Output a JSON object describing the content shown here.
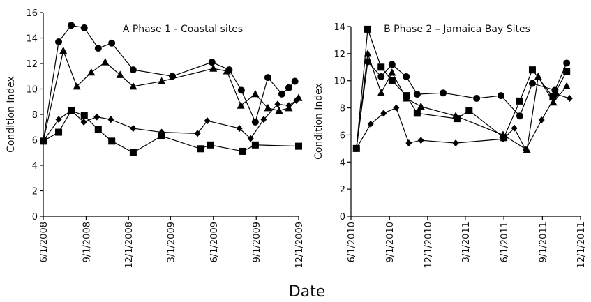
{
  "x_label": "Date",
  "chart_data": [
    {
      "type": "line",
      "title": "A  Phase 1 - Coastal sites",
      "y_label": "Condition Index",
      "xlim": [
        "2008-06-01",
        "2009-12-01"
      ],
      "ylim": [
        0,
        16
      ],
      "yticks": [
        0,
        2,
        4,
        6,
        8,
        10,
        12,
        14,
        16
      ],
      "xticks": [
        {
          "value": "2008-06-01",
          "label": "6/1/2008"
        },
        {
          "value": "2008-09-01",
          "label": "9/1/2008"
        },
        {
          "value": "2008-12-01",
          "label": "12/1/2008"
        },
        {
          "value": "2009-03-01",
          "label": "3/1/2009"
        },
        {
          "value": "2009-06-01",
          "label": "6/1/2009"
        },
        {
          "value": "2009-09-01",
          "label": "9/1/2009"
        },
        {
          "value": "2009-12-01",
          "label": "12/1/2009"
        }
      ],
      "series": [
        {
          "marker": "circle",
          "color": "#000000",
          "x": [
            "2008-06-01",
            "2008-07-04",
            "2008-07-31",
            "2008-08-28",
            "2008-09-27",
            "2008-10-26",
            "2008-12-11",
            "2009-03-05",
            "2009-05-29",
            "2009-07-05",
            "2009-07-31",
            "2009-08-30",
            "2009-09-26",
            "2009-10-26",
            "2009-11-10",
            "2009-11-23"
          ],
          "values": [
            5.9,
            13.7,
            15.0,
            14.8,
            13.2,
            13.6,
            11.5,
            11.0,
            12.1,
            11.5,
            9.9,
            7.4,
            10.9,
            9.6,
            10.1,
            10.6
          ]
        },
        {
          "marker": "triangle",
          "color": "#000000",
          "x": [
            "2008-06-01",
            "2008-07-14",
            "2008-08-12",
            "2008-09-12",
            "2008-10-12",
            "2008-11-13",
            "2008-12-11",
            "2009-02-10",
            "2009-06-01",
            "2009-06-30",
            "2009-07-30",
            "2009-08-30",
            "2009-09-26",
            "2009-10-20",
            "2009-11-10",
            "2009-12-01"
          ],
          "values": [
            5.9,
            13.0,
            10.2,
            11.3,
            12.1,
            11.1,
            10.2,
            10.6,
            11.6,
            11.4,
            8.7,
            9.6,
            8.5,
            8.3,
            8.5,
            9.3
          ]
        },
        {
          "marker": "diamond",
          "color": "#000000",
          "x": [
            "2008-06-01",
            "2008-07-04",
            "2008-07-31",
            "2008-08-27",
            "2008-09-24",
            "2008-10-24",
            "2008-12-11",
            "2009-02-10",
            "2009-04-28",
            "2009-05-19",
            "2009-07-27",
            "2009-08-20",
            "2009-09-17",
            "2009-10-17",
            "2009-11-10",
            "2009-11-26"
          ],
          "values": [
            5.9,
            7.6,
            8.3,
            7.4,
            7.8,
            7.6,
            6.9,
            6.6,
            6.5,
            7.5,
            6.9,
            6.1,
            7.6,
            8.8,
            8.7,
            9.1
          ]
        },
        {
          "marker": "square",
          "color": "#000000",
          "x": [
            "2008-06-01",
            "2008-07-04",
            "2008-07-31",
            "2008-08-28",
            "2008-09-27",
            "2008-10-26",
            "2008-12-11",
            "2009-02-10",
            "2009-05-04",
            "2009-05-25",
            "2009-08-03",
            "2009-08-30",
            "2009-12-01"
          ],
          "values": [
            5.9,
            6.6,
            8.3,
            7.9,
            6.8,
            5.9,
            5.0,
            6.3,
            5.3,
            5.6,
            5.1,
            5.6,
            5.5
          ]
        }
      ]
    },
    {
      "type": "line",
      "title": "B  Phase 2 – Jamaica Bay Sites",
      "y_label": "Condition Index",
      "xlim": [
        "2010-06-01",
        "2011-12-01"
      ],
      "ylim": [
        0,
        14
      ],
      "yticks": [
        0,
        2,
        4,
        6,
        8,
        10,
        12,
        14
      ],
      "xticks": [
        {
          "value": "2010-06-01",
          "label": "6/1/2010"
        },
        {
          "value": "2010-09-01",
          "label": "9/1/2010"
        },
        {
          "value": "2010-12-01",
          "label": "12/1/2010"
        },
        {
          "value": "2011-03-01",
          "label": "3/1/2011"
        },
        {
          "value": "2011-06-01",
          "label": "6/1/2011"
        },
        {
          "value": "2011-09-01",
          "label": "9/1/2011"
        },
        {
          "value": "2011-12-01",
          "label": "12/1/2011"
        }
      ],
      "series": [
        {
          "marker": "square",
          "color": "#000000",
          "x": [
            "2010-06-14",
            "2010-07-11",
            "2010-08-12",
            "2010-09-07",
            "2010-10-11",
            "2010-11-06",
            "2011-02-09",
            "2011-03-10",
            "2011-06-01",
            "2011-07-09",
            "2011-08-08",
            "2011-09-26",
            "2011-10-29"
          ],
          "values": [
            5.0,
            13.8,
            11.0,
            10.0,
            8.9,
            7.6,
            7.2,
            7.8,
            5.8,
            8.5,
            10.8,
            8.8,
            10.7
          ]
        },
        {
          "marker": "circle",
          "color": "#000000",
          "x": [
            "2010-06-14",
            "2010-07-11",
            "2010-08-12",
            "2010-09-07",
            "2010-10-11",
            "2010-11-06",
            "2011-01-07",
            "2011-03-28",
            "2011-05-25",
            "2011-07-09",
            "2011-08-08",
            "2011-10-01",
            "2011-10-29"
          ],
          "values": [
            5.0,
            11.4,
            10.3,
            11.2,
            10.3,
            9.0,
            9.1,
            8.7,
            8.9,
            7.4,
            9.8,
            9.3,
            11.3
          ]
        },
        {
          "marker": "triangle",
          "color": "#000000",
          "x": [
            "2010-06-14",
            "2010-07-11",
            "2010-08-12",
            "2010-09-07",
            "2010-10-11",
            "2010-11-15",
            "2011-02-06",
            "2011-05-30",
            "2011-07-26",
            "2011-08-22",
            "2011-09-27",
            "2011-10-29"
          ],
          "values": [
            5.0,
            12.0,
            9.1,
            10.6,
            8.7,
            8.1,
            7.4,
            6.0,
            4.9,
            10.3,
            8.4,
            9.6
          ]
        },
        {
          "marker": "diamond",
          "color": "#000000",
          "x": [
            "2010-06-14",
            "2010-07-18",
            "2010-08-18",
            "2010-09-17",
            "2010-10-17",
            "2010-11-15",
            "2011-02-06",
            "2011-05-30",
            "2011-06-26",
            "2011-07-23",
            "2011-08-30",
            "2011-10-04",
            "2011-11-05"
          ],
          "values": [
            5.0,
            6.8,
            7.6,
            8.0,
            5.4,
            5.6,
            5.4,
            5.7,
            6.5,
            4.9,
            7.1,
            9.0,
            8.7
          ]
        }
      ]
    }
  ]
}
